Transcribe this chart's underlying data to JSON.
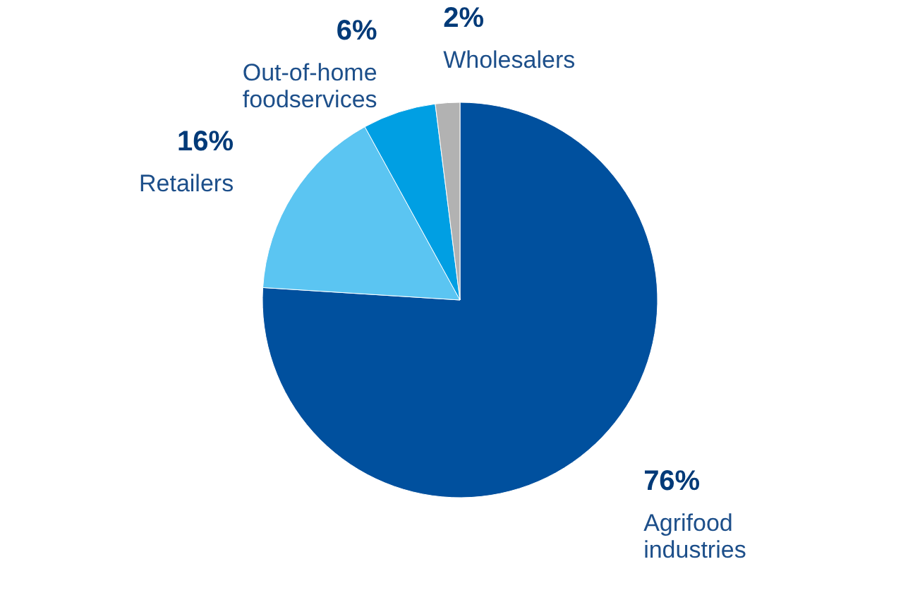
{
  "chart_data": {
    "type": "pie",
    "categories": [
      "Agrifood industries",
      "Retailers",
      "Out-of-home foodservices",
      "Wholesalers"
    ],
    "values": [
      76,
      16,
      6,
      2
    ],
    "colors": [
      "#00509e",
      "#5bc5f2",
      "#009fe3",
      "#b2b2b2"
    ],
    "value_labels": [
      "76%",
      "16%",
      "6%",
      "2%"
    ]
  }
}
